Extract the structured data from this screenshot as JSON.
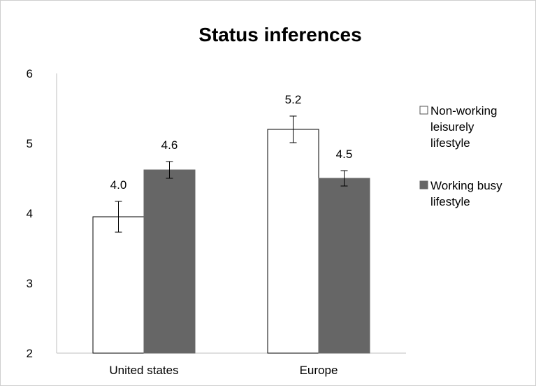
{
  "chart_data": {
    "type": "bar",
    "title": "Status inferences",
    "categories": [
      "United states",
      "Europe"
    ],
    "series": [
      {
        "name": "Non-working leisurely lifestyle",
        "legend_lines": [
          "Non-working",
          "leisurely",
          "lifestyle"
        ],
        "values": [
          3.95,
          5.2
        ],
        "labels": [
          "4.0",
          "5.2"
        ],
        "error": [
          0.22,
          0.19
        ],
        "fill": "#ffffff",
        "stroke": "#000000"
      },
      {
        "name": "Working busy lifestyle",
        "legend_lines": [
          "Working busy",
          "lifestyle"
        ],
        "values": [
          4.62,
          4.5
        ],
        "labels": [
          "4.6",
          "4.5"
        ],
        "error": [
          0.12,
          0.11
        ],
        "fill": "#666666",
        "stroke": "#666666"
      }
    ],
    "ylim": [
      2,
      6
    ],
    "yticks": [
      "2",
      "3",
      "4",
      "5",
      "6"
    ],
    "xlabel": "",
    "ylabel": "",
    "grid": false,
    "legend_position": "right"
  }
}
